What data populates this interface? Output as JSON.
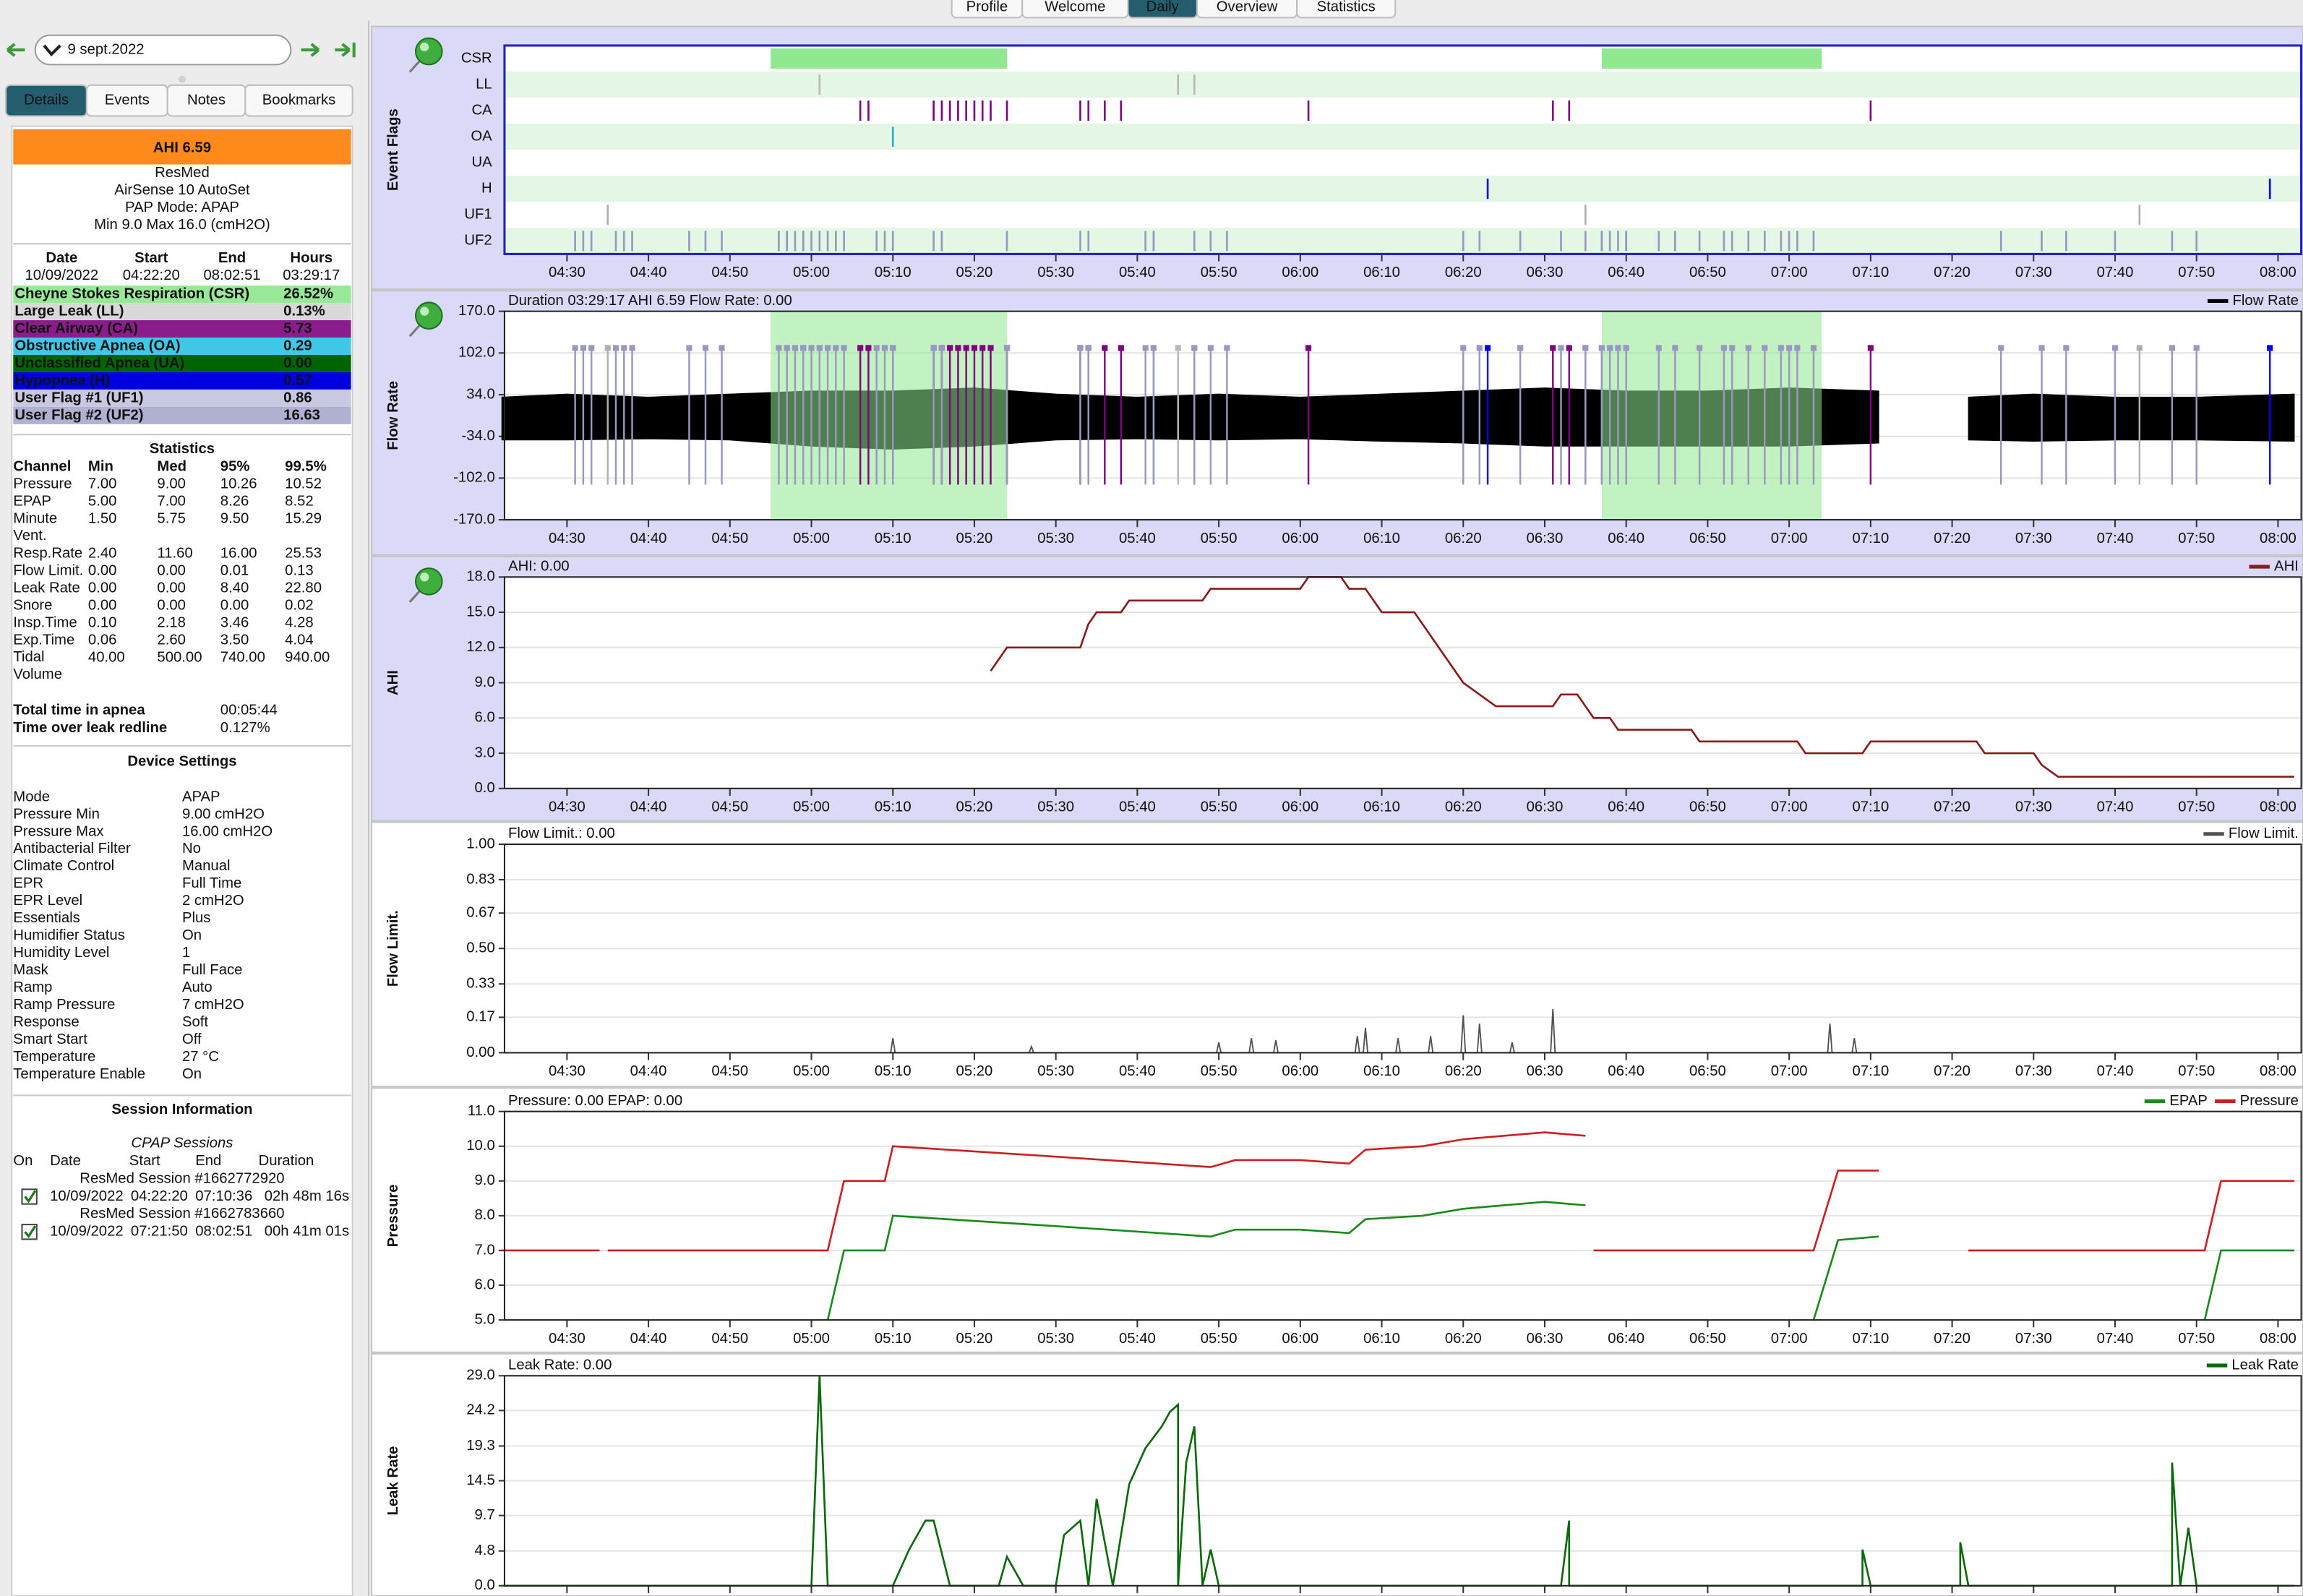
{
  "top_tabs": {
    "items": [
      "Profile",
      "Welcome",
      "Daily",
      "Overview",
      "Statistics"
    ],
    "selected": "Daily"
  },
  "sidebar": {
    "date": "9 sept.2022",
    "tabs": {
      "items": [
        "Details",
        "Events",
        "Notes",
        "Bookmarks"
      ],
      "selected": "Details"
    },
    "ahi": "AHI 6.59",
    "device": [
      "ResMed",
      "AirSense 10 AutoSet",
      "PAP Mode: APAP",
      "Min 9.0 Max 16.0 (cmH2O)"
    ],
    "day": {
      "header": [
        "Date",
        "Start",
        "End",
        "Hours"
      ],
      "row": [
        "10/09/2022",
        "04:22:20",
        "08:02:51",
        "03:29:17"
      ]
    },
    "events": [
      {
        "label": "Cheyne Stokes Respiration (CSR)",
        "value": "26.52%",
        "color": "#98e898",
        "text_color": "#000000"
      },
      {
        "label": "Large Leak (LL)",
        "value": "0.13%",
        "color": "#d8d8d8",
        "text_color": "#000000"
      },
      {
        "label": "Clear Airway (CA)",
        "value": "5.73",
        "color": "#8b1c8b",
        "text_color": "#ffffff"
      },
      {
        "label": "Obstructive Apnea (OA)",
        "value": "0.29",
        "color": "#40c8e8",
        "text_color": "#000000"
      },
      {
        "label": "Unclassified Apnea (UA)",
        "value": "0.00",
        "color": "#006400",
        "text_color": "#ffffff"
      },
      {
        "label": "Hypopnea (H)",
        "value": "0.57",
        "color": "#0000e0",
        "text_color": "#ffffff"
      },
      {
        "label": "User Flag #1 (UF1)",
        "value": "0.86",
        "color": "#c8c8e0",
        "text_color": "#000000"
      },
      {
        "label": "User Flag #2 (UF2)",
        "value": "16.63",
        "color": "#b0b0d0",
        "text_color": "#000000"
      }
    ],
    "statistics": {
      "title": "Statistics",
      "header": [
        "Channel",
        "Min",
        "Med",
        "95%",
        "99.5%"
      ],
      "rows": [
        [
          "Pressure",
          "7.00",
          "9.00",
          "10.26",
          "10.52"
        ],
        [
          "EPAP",
          "5.00",
          "7.00",
          "8.26",
          "8.52"
        ],
        [
          "Minute Vent.",
          "1.50",
          "5.75",
          "9.50",
          "15.29"
        ],
        [
          "Resp.Rate",
          "2.40",
          "11.60",
          "16.00",
          "25.53"
        ],
        [
          "Flow Limit.",
          "0.00",
          "0.00",
          "0.01",
          "0.13"
        ],
        [
          "Leak Rate",
          "0.00",
          "0.00",
          "8.40",
          "22.80"
        ],
        [
          "Snore",
          "0.00",
          "0.00",
          "0.00",
          "0.02"
        ],
        [
          "Insp.Time",
          "0.10",
          "2.18",
          "3.46",
          "4.28"
        ],
        [
          "Exp.Time",
          "0.06",
          "2.60",
          "3.50",
          "4.04"
        ],
        [
          "Tidal Volume",
          "40.00",
          "500.00",
          "740.00",
          "940.00"
        ]
      ]
    },
    "totals": [
      [
        "Total time in apnea",
        "00:05:44"
      ],
      [
        "Time over leak redline",
        "0.127%"
      ]
    ],
    "settings": {
      "title": "Device Settings",
      "rows": [
        [
          "Mode",
          "APAP"
        ],
        [
          "Pressure Min",
          "9.00 cmH2O"
        ],
        [
          "Pressure Max",
          "16.00 cmH2O"
        ],
        [
          "Antibacterial Filter",
          "No"
        ],
        [
          "Climate Control",
          "Manual"
        ],
        [
          "EPR",
          "Full Time"
        ],
        [
          "EPR Level",
          "2 cmH2O"
        ],
        [
          "Essentials",
          "Plus"
        ],
        [
          "Humidifier Status",
          "On"
        ],
        [
          "Humidity Level",
          "1"
        ],
        [
          "Mask",
          "Full Face"
        ],
        [
          "Ramp",
          "Auto"
        ],
        [
          "Ramp Pressure",
          "7 cmH2O"
        ],
        [
          "Response",
          "Soft"
        ],
        [
          "Smart Start",
          "Off"
        ],
        [
          "Temperature",
          "27 °C"
        ],
        [
          "Temperature Enable",
          "On"
        ]
      ]
    },
    "sessions": {
      "title": "Session Information",
      "subtitle": "CPAP Sessions",
      "header": [
        "On",
        "Date",
        "Start",
        "End",
        "Duration"
      ],
      "items": [
        {
          "name": "ResMed Session #1662772920",
          "row": [
            "10/09/2022",
            "04:22:20",
            "07:10:36",
            "02h 48m 16s"
          ]
        },
        {
          "name": "ResMed Session #1662783660",
          "row": [
            "10/09/2022",
            "07:21:50",
            "08:02:51",
            "00h 41m 01s"
          ]
        }
      ]
    }
  },
  "time_axis": {
    "xlim": [
      "04:22:20",
      "08:02:51"
    ],
    "xticks": [
      "04:30",
      "04:40",
      "04:50",
      "05:00",
      "05:10",
      "05:20",
      "05:30",
      "05:40",
      "05:50",
      "06:00",
      "06:10",
      "06:20",
      "06:30",
      "06:40",
      "06:50",
      "07:00",
      "07:10",
      "07:20",
      "07:30",
      "07:40",
      "07:50",
      "08:00"
    ]
  },
  "graphs": [
    {
      "type": "flags",
      "title": "Event Flags",
      "pinned": true,
      "rows": [
        {
          "name": "CSR",
          "color": "#90e890",
          "spans": [
            [
              "04:55",
              "05:24"
            ],
            [
              "06:37",
              "07:04"
            ]
          ]
        },
        {
          "name": "LL",
          "color": "#b8b8b8",
          "events": [
            "05:01",
            "05:45",
            "05:47"
          ]
        },
        {
          "name": "CA",
          "color": "#800080",
          "events": [
            "05:06",
            "05:07",
            "05:15",
            "05:16",
            "05:17",
            "05:18",
            "05:19",
            "05:20",
            "05:21",
            "05:22",
            "05:24",
            "05:33",
            "05:34",
            "05:36",
            "05:38",
            "06:01",
            "06:31",
            "06:33",
            "07:10"
          ]
        },
        {
          "name": "OA",
          "color": "#30a8e0",
          "events": [
            "05:10"
          ]
        },
        {
          "name": "UA",
          "color": "#006400",
          "events": []
        },
        {
          "name": "H",
          "color": "#0000ff",
          "events": [
            "06:23",
            "07:59"
          ]
        },
        {
          "name": "UF1",
          "color": "#b0b0b0",
          "events": [
            "04:35",
            "06:35",
            "07:43"
          ]
        },
        {
          "name": "UF2",
          "color": "#9898c0",
          "events": [
            "04:31",
            "04:32",
            "04:33",
            "04:36",
            "04:37",
            "04:38",
            "04:45",
            "04:47",
            "04:49",
            "04:56",
            "04:57",
            "04:57",
            "04:58",
            "04:59",
            "04:59",
            "05:00",
            "05:01",
            "05:02",
            "05:03",
            "05:04",
            "05:08",
            "05:09",
            "05:10",
            "05:15",
            "05:16",
            "05:24",
            "05:33",
            "05:34",
            "05:41",
            "05:42",
            "05:42",
            "05:47",
            "05:49",
            "05:51",
            "06:20",
            "06:22",
            "06:27",
            "06:32",
            "06:35",
            "06:37",
            "06:37",
            "06:38",
            "06:39",
            "06:40",
            "06:40",
            "06:44",
            "06:46",
            "06:49",
            "06:52",
            "06:53",
            "06:55",
            "06:57",
            "06:59",
            "07:00",
            "07:01",
            "07:03",
            "07:26",
            "07:31",
            "07:34",
            "07:40",
            "07:47",
            "07:50"
          ]
        }
      ]
    },
    {
      "type": "flow",
      "title": "Flow Rate",
      "pinned": true,
      "header": "Duration 03:29:17 AHI 6.59 Flow Rate: 0.00",
      "ylim": [
        -170,
        170
      ],
      "yticks": [
        {
          "value": -170,
          "label": "-170.0"
        },
        {
          "value": -102,
          "label": "-102.0"
        },
        {
          "value": -34,
          "label": "-34.0"
        },
        {
          "value": 34,
          "label": "34.0"
        },
        {
          "value": 102,
          "label": "102.0"
        },
        {
          "value": 170,
          "label": "170.0"
        }
      ],
      "series": [
        {
          "name": "Flow Rate",
          "color": "#000000",
          "x": [
            "04:22",
            "04:30",
            "04:40",
            "04:50",
            "05:00",
            "05:10",
            "05:20",
            "05:30",
            "05:40",
            "05:50",
            "06:00",
            "06:10",
            "06:20",
            "06:30",
            "06:40",
            "06:50",
            "07:00",
            "07:11",
            "07:16",
            "07:22",
            "07:30",
            "07:40",
            "07:50",
            "08:02"
          ],
          "max": [
            30,
            35,
            30,
            35,
            40,
            40,
            45,
            35,
            30,
            35,
            30,
            35,
            40,
            45,
            40,
            40,
            45,
            40,
            null,
            30,
            35,
            30,
            30,
            35
          ],
          "min": [
            -40,
            -40,
            -38,
            -40,
            -50,
            -55,
            -50,
            -40,
            -38,
            -40,
            -38,
            -42,
            -45,
            -50,
            -50,
            -50,
            -50,
            -45,
            null,
            -40,
            -42,
            -40,
            -40,
            -42
          ]
        }
      ]
    },
    {
      "type": "line",
      "title": "AHI",
      "pinned": true,
      "header": "AHI: 0.00",
      "ylim": [
        0,
        18
      ],
      "yticks": [
        {
          "value": 0,
          "label": "0.0"
        },
        {
          "value": 3,
          "label": "3.0"
        },
        {
          "value": 6,
          "label": "6.0"
        },
        {
          "value": 9,
          "label": "9.0"
        },
        {
          "value": 12,
          "label": "12.0"
        },
        {
          "value": 15,
          "label": "15.0"
        },
        {
          "value": 18,
          "label": "18.0"
        }
      ],
      "series": [
        {
          "name": "AHI",
          "color": "#8b1a1a",
          "x": [
            "05:22",
            "05:24",
            "05:33",
            "05:34",
            "05:35",
            "05:38",
            "05:39",
            "05:48",
            "05:49",
            "06:00",
            "06:01",
            "06:05",
            "06:06",
            "06:08",
            "06:10",
            "06:14",
            "06:15",
            "06:20",
            "06:22",
            "06:24",
            "06:31",
            "06:32",
            "06:34",
            "06:35",
            "06:36",
            "06:38",
            "06:39",
            "06:48",
            "06:49",
            "07:01",
            "07:02",
            "07:09",
            "07:10",
            "07:23",
            "07:24",
            "07:30",
            "07:31",
            "07:33",
            "08:02"
          ],
          "values": [
            10,
            12,
            12,
            14,
            15,
            15,
            16,
            16,
            17,
            17,
            18,
            18,
            17,
            17,
            15,
            15,
            14,
            9,
            8,
            7,
            7,
            8,
            8,
            7,
            6,
            6,
            5,
            5,
            4,
            4,
            3,
            3,
            4,
            4,
            3,
            3,
            2,
            1,
            1
          ]
        }
      ]
    },
    {
      "type": "spikes",
      "title": "Flow Limit.",
      "pinned": false,
      "header": "Flow Limit.: 0.00",
      "ylim": [
        0,
        1
      ],
      "yticks": [
        {
          "value": 0,
          "label": "0.00"
        },
        {
          "value": 0.17,
          "label": "0.17"
        },
        {
          "value": 0.33,
          "label": "0.33"
        },
        {
          "value": 0.5,
          "label": "0.50"
        },
        {
          "value": 0.67,
          "label": "0.67"
        },
        {
          "value": 0.83,
          "label": "0.83"
        },
        {
          "value": 1,
          "label": "1.00"
        }
      ],
      "series": [
        {
          "name": "Flow Limit.",
          "color": "#505050",
          "x": [
            "05:10",
            "05:27",
            "05:50",
            "05:54",
            "05:57",
            "06:07",
            "06:08",
            "06:12",
            "06:16",
            "06:20",
            "06:22",
            "06:26",
            "06:31",
            "07:05",
            "07:08"
          ],
          "values": [
            0.07,
            0.03,
            0.05,
            0.07,
            0.06,
            0.08,
            0.12,
            0.07,
            0.08,
            0.18,
            0.14,
            0.05,
            0.21,
            0.14,
            0.07
          ]
        }
      ]
    },
    {
      "type": "line",
      "title": "Pressure",
      "pinned": false,
      "header": "Pressure: 0.00 EPAP: 0.00",
      "ylim": [
        5,
        11
      ],
      "yticks": [
        {
          "value": 5,
          "label": "5.0"
        },
        {
          "value": 6,
          "label": "6.0"
        },
        {
          "value": 7,
          "label": "7.0"
        },
        {
          "value": 8,
          "label": "8.0"
        },
        {
          "value": 9,
          "label": "9.0"
        },
        {
          "value": 10,
          "label": "10.0"
        },
        {
          "value": 11,
          "label": "11.0"
        }
      ],
      "series": [
        {
          "name": "EPAP",
          "color": "#1a8a1a",
          "x": [
            "05:02",
            "05:04",
            "05:09",
            "05:10",
            "05:30",
            "05:49",
            "05:52",
            "06:00",
            "06:06",
            "06:08",
            "06:15",
            "06:20",
            "06:25",
            "06:30",
            "06:35",
            "06:50",
            "07:03",
            "07:06",
            "07:11",
            "07:16",
            "07:51",
            "07:53",
            "08:02"
          ],
          "values": [
            5.0,
            7.0,
            7.0,
            8.0,
            7.7,
            7.4,
            7.6,
            7.6,
            7.5,
            7.9,
            8.0,
            8.2,
            8.3,
            8.4,
            8.3,
            null,
            5.0,
            7.3,
            7.4,
            null,
            5.0,
            7.0,
            7.0
          ]
        },
        {
          "name": "Pressure",
          "color": "#cc2020",
          "x": [
            "04:22",
            "04:34",
            "04:34",
            "04:35",
            "05:02",
            "05:04",
            "05:09",
            "05:10",
            "05:30",
            "05:49",
            "05:52",
            "06:00",
            "06:06",
            "06:08",
            "06:15",
            "06:20",
            "06:25",
            "06:30",
            "06:35",
            "06:35",
            "06:36",
            "07:03",
            "07:06",
            "07:11",
            "07:16",
            "07:22",
            "07:51",
            "07:53",
            "08:02"
          ],
          "values": [
            7.0,
            7.0,
            null,
            7.0,
            7.0,
            9.0,
            9.0,
            10.0,
            9.7,
            9.4,
            9.6,
            9.6,
            9.5,
            9.9,
            10.0,
            10.2,
            10.3,
            10.4,
            10.3,
            null,
            7.0,
            7.0,
            9.3,
            9.3,
            null,
            7.0,
            7.0,
            9.0,
            9.0
          ]
        }
      ]
    },
    {
      "type": "line",
      "title": "Leak Rate",
      "pinned": false,
      "header": "Leak Rate: 0.00",
      "ylim": [
        0,
        29
      ],
      "yticks": [
        {
          "value": 0,
          "label": "0.0"
        },
        {
          "value": 4.8,
          "label": "4.8"
        },
        {
          "value": 9.7,
          "label": "9.7"
        },
        {
          "value": 14.5,
          "label": "14.5"
        },
        {
          "value": 19.3,
          "label": "19.3"
        },
        {
          "value": 24.2,
          "label": "24.2"
        },
        {
          "value": 29,
          "label": "29.0"
        }
      ],
      "series": [
        {
          "name": "Leak Rate",
          "color": "#0a6a0a",
          "x": [
            "04:22",
            "05:00",
            "05:01",
            "05:02",
            "05:10",
            "05:12",
            "05:14",
            "05:15",
            "05:17",
            "05:23",
            "05:24",
            "05:26",
            "05:30",
            "05:31",
            "05:33",
            "05:34",
            "05:35",
            "05:37",
            "05:39",
            "05:41",
            "05:43",
            "05:44",
            "05:45",
            "05:45",
            "05:46",
            "05:47",
            "05:48",
            "05:49",
            "05:50",
            "06:32",
            "06:33",
            "06:33",
            "07:09",
            "07:09",
            "07:10",
            "07:21",
            "07:21",
            "07:22",
            "07:47",
            "07:47",
            "07:48",
            "07:49",
            "07:50",
            "08:02"
          ],
          "values": [
            0,
            0,
            29,
            0,
            0,
            5,
            9,
            9,
            0,
            0,
            4,
            0,
            0,
            7,
            9,
            0,
            12,
            0,
            14,
            19,
            22,
            24,
            25,
            0,
            17,
            22,
            0,
            5,
            0,
            0,
            9,
            0,
            0,
            5,
            0,
            0,
            6,
            0,
            0,
            17,
            0,
            8,
            0,
            0
          ]
        }
      ]
    }
  ]
}
